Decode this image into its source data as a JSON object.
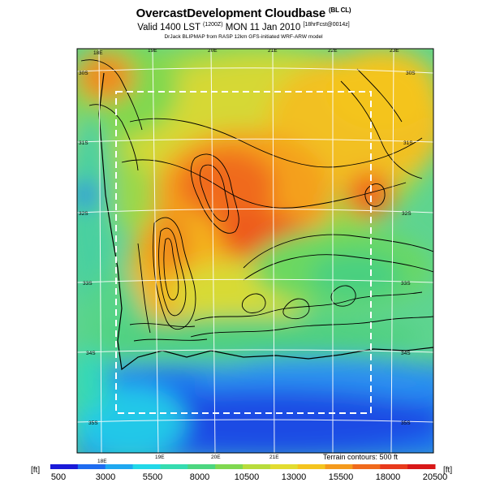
{
  "header": {
    "title": "OvercastDevelopment Cloudbase",
    "title_tag": "(BL CL)",
    "valid_line": "Valid 1400 LST",
    "valid_code": "(1200Z)",
    "valid_date": "MON 11 Jan 2010",
    "valid_tag": "[18hrFcst@0014z]",
    "model_line": "DrJack BLIPMAP from RASP 12km GFS-initiated WRF-ARW model"
  },
  "map": {
    "lon_labels_top": [
      "18E",
      "19E",
      "20E",
      "21E",
      "22E",
      "23E"
    ],
    "lon_labels_bottom": [
      "18E",
      "19E",
      "20E",
      "21E"
    ],
    "lat_labels_left": [
      "30S",
      "31S",
      "32S",
      "33S",
      "34S",
      "35S"
    ],
    "lat_labels_right": [
      "30S",
      "31S",
      "32S",
      "33S",
      "34S",
      "35S"
    ],
    "terrain_note": "Terrain contours: 500 ft"
  },
  "colorbar": {
    "unit_left": "[ft]",
    "unit_right": "[ft]",
    "tick_labels": [
      "500",
      "3000",
      "5500",
      "8000",
      "10500",
      "13000",
      "15500",
      "18000",
      "20500"
    ],
    "colors": [
      "#1a1ad8",
      "#1f6cf0",
      "#1fa8f0",
      "#22d8e8",
      "#35dcb0",
      "#4cd680",
      "#80d850",
      "#b8dc3c",
      "#e2dc30",
      "#f4c41e",
      "#f49a1c",
      "#f06a1c",
      "#e83a1c",
      "#d81818"
    ]
  }
}
